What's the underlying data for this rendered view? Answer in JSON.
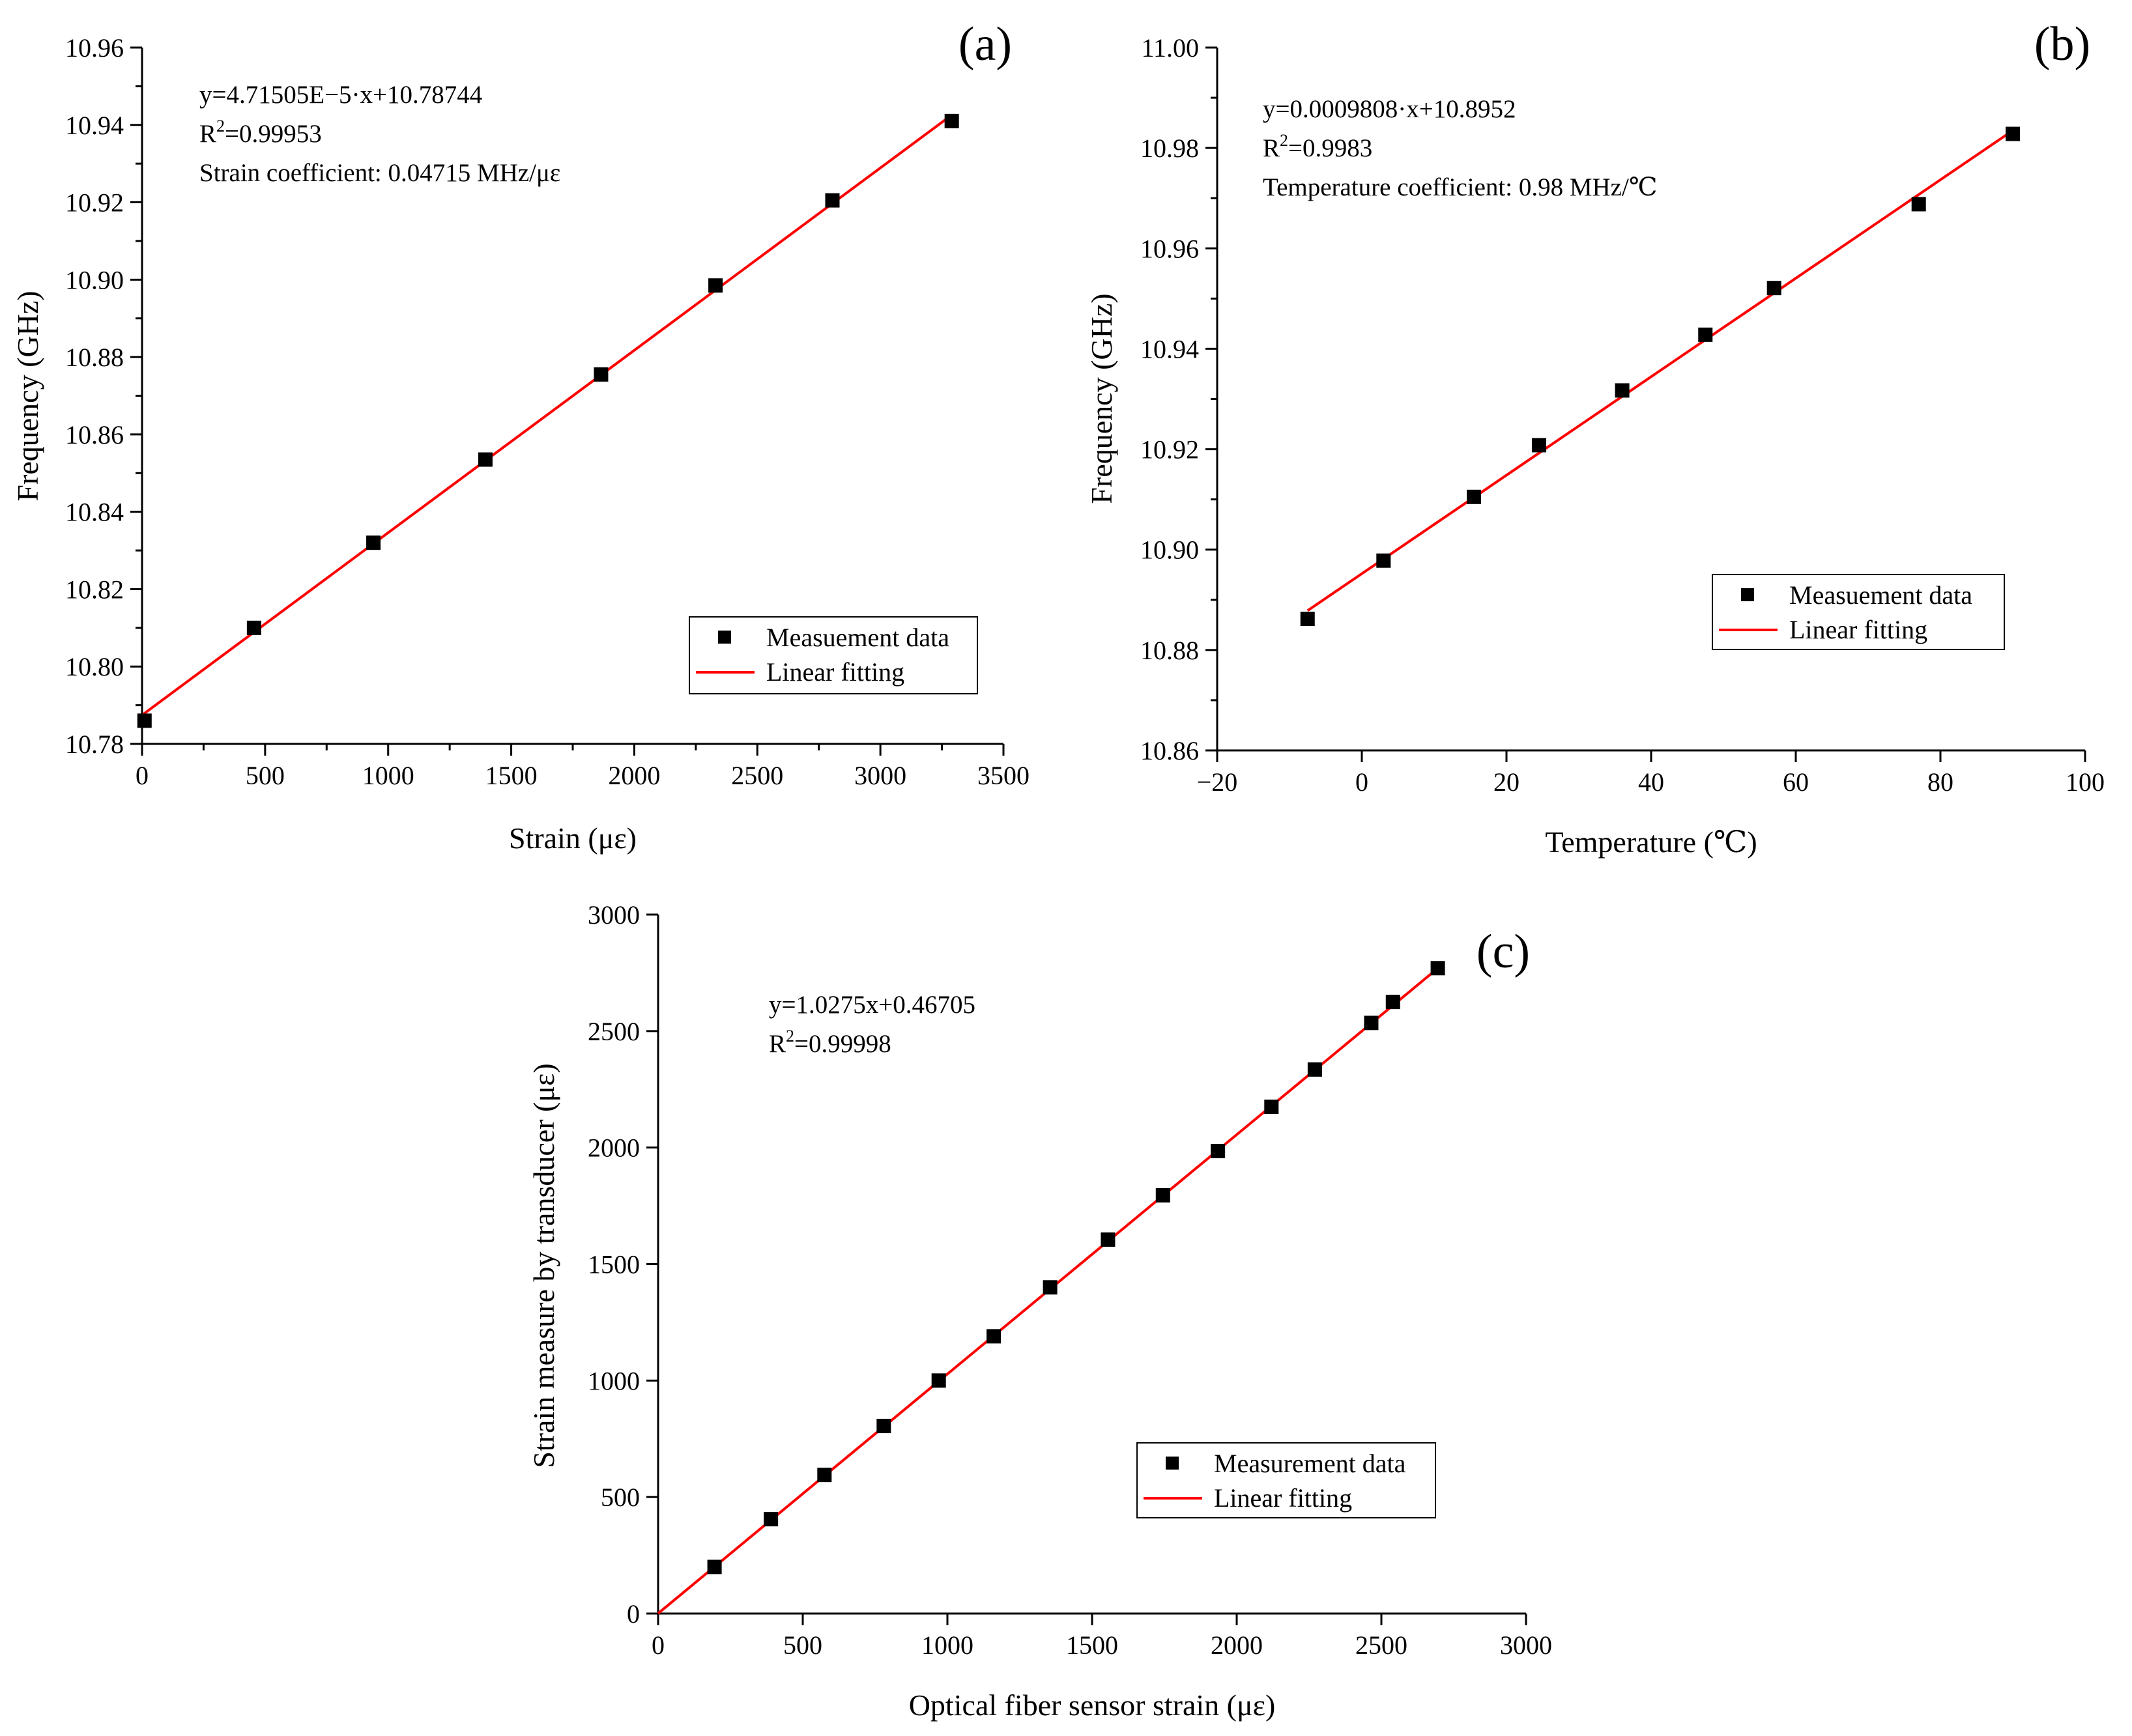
{
  "chart_data": [
    {
      "panel": "(a)",
      "type": "scatter",
      "xlabel": "Strain (με)",
      "ylabel": "Frequency (GHz)",
      "xlim": [
        0,
        3500
      ],
      "ylim": [
        10.78,
        10.96
      ],
      "xticks": [
        "0",
        "500",
        "1000",
        "1500",
        "2000",
        "2500",
        "3000",
        "3500"
      ],
      "yticks": [
        "10.78",
        "10.80",
        "10.82",
        "10.84",
        "10.86",
        "10.88",
        "10.90",
        "10.92",
        "10.94",
        "10.96"
      ],
      "equation": "y=4.71505E−5·x+10.78744",
      "r2_label": "R",
      "r2_sup": "2",
      "r2_value": "=0.99953",
      "coefficient": "Strain coefficient: 0.04715 MHz/με",
      "legend": {
        "markers": "Measuement data",
        "line": "Linear fitting",
        "position": "bottom-right"
      },
      "series": [
        {
          "name": "Measuement data",
          "x": [
            10,
            455,
            940,
            1395,
            1865,
            2330,
            2805,
            3290
          ],
          "y": [
            10.786,
            10.81,
            10.832,
            10.8535,
            10.8755,
            10.8985,
            10.9205,
            10.941
          ]
        }
      ],
      "fit": {
        "slope": 4.71505e-05,
        "intercept": 10.78744,
        "x_range": [
          0,
          3290
        ]
      },
      "colors": {
        "marker": "#000000",
        "fit": "#ff0000"
      }
    },
    {
      "panel": "(b)",
      "type": "scatter",
      "xlabel": "Temperature (℃)",
      "ylabel": "Frequency (GHz)",
      "xlim": [
        -20,
        100
      ],
      "ylim": [
        10.86,
        11.0
      ],
      "xticks": [
        "−20",
        "0",
        "20",
        "40",
        "60",
        "80",
        "100"
      ],
      "yticks": [
        "10.86",
        "10.88",
        "10.90",
        "10.92",
        "10.94",
        "10.96",
        "10.98",
        "11.00"
      ],
      "equation": "y=0.0009808·x+10.8952",
      "r2_label": "R",
      "r2_sup": "2",
      "r2_value": "=0.9983",
      "coefficient": "Temperature coefficient: 0.98 MHz/℃",
      "legend": {
        "markers": "Measuement data",
        "line": "Linear fitting",
        "position": "bottom-right"
      },
      "series": [
        {
          "name": "Measuement data",
          "x": [
            -7.5,
            3,
            15.5,
            24.5,
            36,
            47.5,
            57,
            77,
            90
          ],
          "y": [
            10.8862,
            10.8978,
            10.9105,
            10.9208,
            10.9317,
            10.9428,
            10.9521,
            10.9688,
            10.9828
          ]
        }
      ],
      "fit": {
        "slope": 0.0009808,
        "intercept": 10.8952,
        "x_range": [
          -7.5,
          90
        ]
      },
      "colors": {
        "marker": "#000000",
        "fit": "#ff0000"
      }
    },
    {
      "panel": "(c)",
      "type": "scatter",
      "xlabel": "Optical fiber sensor strain (με)",
      "ylabel": "Strain measure by transducer (με)",
      "xlim": [
        0,
        3000
      ],
      "ylim": [
        0,
        3000
      ],
      "xticks": [
        "0",
        "500",
        "1000",
        "1500",
        "2000",
        "2500",
        "3000"
      ],
      "yticks": [
        "0",
        "500",
        "1000",
        "1500",
        "2000",
        "2500",
        "3000"
      ],
      "equation": "y=1.0275x+0.46705",
      "r2_label": "R",
      "r2_sup": "2",
      "r2_value": "=0.99998",
      "legend": {
        "markers": "Measurement data",
        "line": "Linear fitting",
        "position": "bottom-right"
      },
      "series": [
        {
          "name": "Measurement data",
          "x": [
            195,
            390,
            575,
            780,
            970,
            1160,
            1355,
            1555,
            1745,
            1935,
            2120,
            2270,
            2465,
            2540,
            2695
          ],
          "y": [
            200,
            405,
            595,
            805,
            1000,
            1190,
            1400,
            1605,
            1795,
            1985,
            2175,
            2335,
            2535,
            2625,
            2770
          ]
        }
      ],
      "fit": {
        "slope": 1.0275,
        "intercept": 0.46705,
        "x_range": [
          0,
          2695
        ]
      },
      "colors": {
        "marker": "#000000",
        "fit": "#ff0000"
      }
    }
  ]
}
